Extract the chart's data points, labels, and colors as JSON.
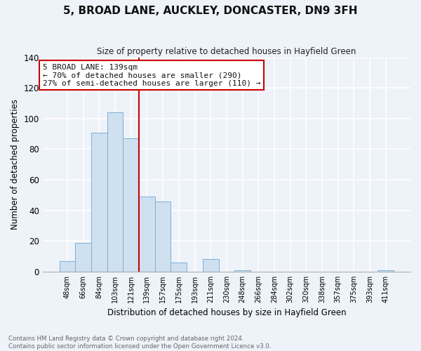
{
  "title": "5, BROAD LANE, AUCKLEY, DONCASTER, DN9 3FH",
  "subtitle": "Size of property relative to detached houses in Hayfield Green",
  "xlabel": "Distribution of detached houses by size in Hayfield Green",
  "ylabel": "Number of detached properties",
  "bin_labels": [
    "48sqm",
    "66sqm",
    "84sqm",
    "103sqm",
    "121sqm",
    "139sqm",
    "157sqm",
    "175sqm",
    "193sqm",
    "211sqm",
    "230sqm",
    "248sqm",
    "266sqm",
    "284sqm",
    "302sqm",
    "320sqm",
    "338sqm",
    "357sqm",
    "375sqm",
    "393sqm",
    "411sqm"
  ],
  "bar_values": [
    7,
    19,
    91,
    104,
    87,
    49,
    46,
    6,
    0,
    8,
    0,
    1,
    0,
    0,
    0,
    0,
    0,
    0,
    0,
    0,
    1
  ],
  "bar_color": "#cfe0f0",
  "bar_edge_color": "#7ab0d8",
  "vline_color": "#cc0000",
  "ylim": [
    0,
    140
  ],
  "yticks": [
    0,
    20,
    40,
    60,
    80,
    100,
    120,
    140
  ],
  "annotation_title": "5 BROAD LANE: 139sqm",
  "annotation_line1": "← 70% of detached houses are smaller (290)",
  "annotation_line2": "27% of semi-detached houses are larger (110) →",
  "annotation_box_color": "#ffffff",
  "annotation_box_edge": "#cc0000",
  "footer_line1": "Contains HM Land Registry data © Crown copyright and database right 2024.",
  "footer_line2": "Contains public sector information licensed under the Open Government Licence v3.0.",
  "background_color": "#eef2f9"
}
